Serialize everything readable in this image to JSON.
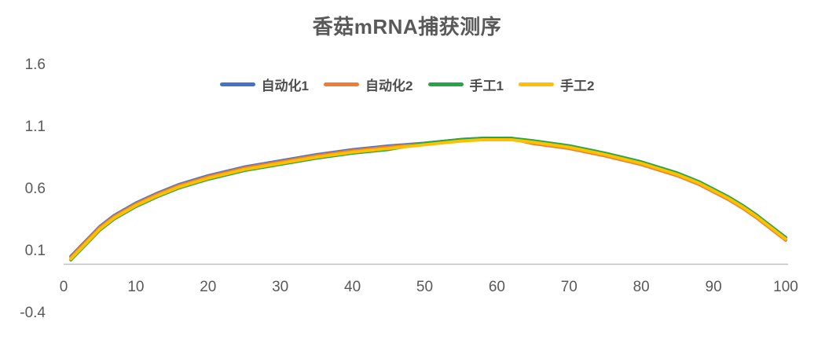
{
  "chart_data": {
    "type": "line",
    "title": "香菇mRNA捕获测序",
    "xlabel": "",
    "ylabel": "",
    "x_range": [
      0,
      100
    ],
    "y_range": [
      -0.4,
      1.6
    ],
    "x_ticks": [
      0,
      10,
      20,
      30,
      40,
      50,
      60,
      70,
      80,
      90,
      100
    ],
    "y_ticks": [
      1.6,
      1.1,
      0.6,
      0.1,
      -0.4
    ],
    "grid": false,
    "legend_position": "top-center",
    "colors": {
      "axis_line": "#C0C0C0",
      "tick_text": "#595959",
      "title_text": "#595959",
      "background": "#FFFFFF"
    },
    "x": [
      1,
      2,
      3,
      4,
      5,
      7,
      10,
      13,
      16,
      20,
      25,
      30,
      35,
      40,
      45,
      50,
      55,
      58,
      62,
      65,
      70,
      75,
      80,
      85,
      88,
      90,
      92,
      94,
      96,
      98,
      100
    ],
    "series": [
      {
        "name": "自动化1",
        "color": "#4472C4",
        "values": [
          0.06,
          0.12,
          0.18,
          0.24,
          0.3,
          0.39,
          0.49,
          0.57,
          0.64,
          0.71,
          0.78,
          0.83,
          0.88,
          0.92,
          0.95,
          0.972,
          1.002,
          1.012,
          1.012,
          0.98,
          0.94,
          0.88,
          0.81,
          0.72,
          0.65,
          0.59,
          0.53,
          0.46,
          0.38,
          0.29,
          0.2
        ]
      },
      {
        "name": "自动化2",
        "color": "#ED7D31",
        "values": [
          0.052,
          0.112,
          0.172,
          0.232,
          0.292,
          0.382,
          0.482,
          0.562,
          0.632,
          0.702,
          0.772,
          0.822,
          0.872,
          0.912,
          0.942,
          0.968,
          0.998,
          1.008,
          1.008,
          0.97,
          0.93,
          0.87,
          0.8,
          0.71,
          0.64,
          0.58,
          0.52,
          0.45,
          0.37,
          0.28,
          0.19
        ]
      },
      {
        "name": "手工1",
        "color": "#24A647",
        "values": [
          0.032,
          0.092,
          0.152,
          0.212,
          0.272,
          0.362,
          0.462,
          0.542,
          0.612,
          0.682,
          0.752,
          0.802,
          0.852,
          0.892,
          0.922,
          0.972,
          1.002,
          1.012,
          1.012,
          0.992,
          0.952,
          0.892,
          0.822,
          0.732,
          0.662,
          0.602,
          0.542,
          0.472,
          0.392,
          0.302,
          0.212
        ]
      },
      {
        "name": "手工2",
        "color": "#FFC000",
        "values": [
          0.04,
          0.1,
          0.16,
          0.22,
          0.28,
          0.37,
          0.47,
          0.55,
          0.62,
          0.69,
          0.76,
          0.81,
          0.86,
          0.9,
          0.93,
          0.96,
          0.99,
          1.0,
          1.0,
          0.98,
          0.94,
          0.88,
          0.81,
          0.72,
          0.65,
          0.59,
          0.53,
          0.46,
          0.38,
          0.29,
          0.2
        ]
      }
    ]
  }
}
